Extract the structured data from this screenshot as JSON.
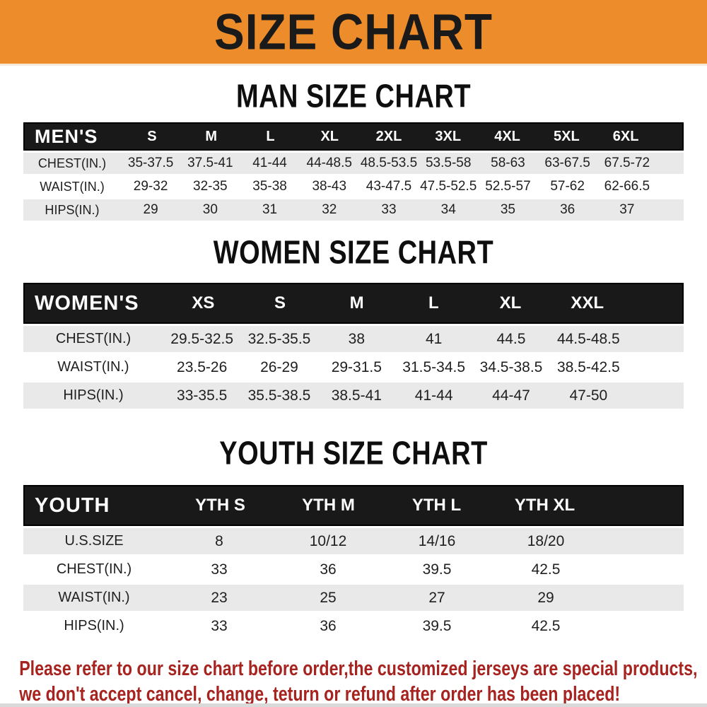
{
  "banner": {
    "title": "SIZE CHART"
  },
  "colors": {
    "banner_bg": "#ED8C2B",
    "banner_text": "#1a1a1a",
    "header_bar_bg": "#191919",
    "header_bar_text": "#ffffff",
    "row_stripe": "#e9e9e9",
    "row_text": "#1f1f1f",
    "footer_text": "#a6231f"
  },
  "sections": [
    {
      "id": "men",
      "title": "MAN SIZE CHART",
      "header_label": "MEN'S",
      "columns": [
        "S",
        "M",
        "L",
        "XL",
        "2XL",
        "3XL",
        "4XL",
        "5XL",
        "6XL"
      ],
      "rows": [
        {
          "label": "CHEST(IN.)",
          "values": [
            "35-37.5",
            "37.5-41",
            "41-44",
            "44-48.5",
            "48.5-53.5",
            "53.5-58",
            "58-63",
            "63-67.5",
            "67.5-72"
          ]
        },
        {
          "label": "WAIST(IN.)",
          "values": [
            "29-32",
            "32-35",
            "35-38",
            "38-43",
            "43-47.5",
            "47.5-52.5",
            "52.5-57",
            "57-62",
            "62-66.5"
          ]
        },
        {
          "label": "HIPS(IN.)",
          "values": [
            "29",
            "30",
            "31",
            "32",
            "33",
            "34",
            "35",
            "36",
            "37"
          ]
        }
      ]
    },
    {
      "id": "women",
      "title": "WOMEN SIZE CHART",
      "header_label": "WOMEN'S",
      "columns": [
        "XS",
        "S",
        "M",
        "L",
        "XL",
        "XXL"
      ],
      "rows": [
        {
          "label": "CHEST(IN.)",
          "values": [
            "29.5-32.5",
            "32.5-35.5",
            "38",
            "41",
            "44.5",
            "44.5-48.5"
          ]
        },
        {
          "label": "WAIST(IN.)",
          "values": [
            "23.5-26",
            "26-29",
            "29-31.5",
            "31.5-34.5",
            "34.5-38.5",
            "38.5-42.5"
          ]
        },
        {
          "label": "HIPS(IN.)",
          "values": [
            "33-35.5",
            "35.5-38.5",
            "38.5-41",
            "41-44",
            "44-47",
            "47-50"
          ]
        }
      ]
    },
    {
      "id": "youth",
      "title": "YOUTH SIZE CHART",
      "header_label": "YOUTH",
      "columns": [
        "YTH S",
        "YTH M",
        "YTH L",
        "YTH XL"
      ],
      "rows": [
        {
          "label": "U.S.SIZE",
          "values": [
            "8",
            "10/12",
            "14/16",
            "18/20"
          ]
        },
        {
          "label": "CHEST(IN.)",
          "values": [
            "33",
            "36",
            "39.5",
            "42.5"
          ]
        },
        {
          "label": "WAIST(IN.)",
          "values": [
            "23",
            "25",
            "27",
            "29"
          ]
        },
        {
          "label": "HIPS(IN.)",
          "values": [
            "33",
            "36",
            "39.5",
            "42.5"
          ]
        }
      ]
    }
  ],
  "footer": {
    "line1": "Please refer to our size chart before order,the customized jerseys are special products,",
    "line2": "we don't accept cancel, change, teturn or refund after order has been placed!"
  }
}
